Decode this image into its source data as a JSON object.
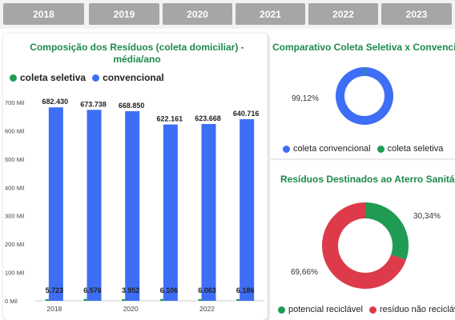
{
  "year_filters": [
    "2018",
    "2019",
    "2020",
    "2021",
    "2022",
    "2023"
  ],
  "colors": {
    "blue": "#3d6ef5",
    "green": "#1f9b54",
    "red": "#dd3b4a",
    "title_green": "#1e8a4c",
    "filter_bg": "#a6a6a6"
  },
  "left_panel": {
    "title_line1": "Composição dos Resíduos (coleta domiciliar) -",
    "title_line2": "média/ano",
    "legend": [
      {
        "label": "coleta seletiva",
        "color": "#1f9b54"
      },
      {
        "label": "convencional",
        "color": "#3d6ef5"
      }
    ]
  },
  "top_right": {
    "title": "Comparativo Coleta Seletiva x Convencional",
    "label_convencional": "99,12%",
    "legend": [
      {
        "label": "coleta convencional",
        "color": "#3d6ef5"
      },
      {
        "label": "coleta seletiva",
        "color": "#1f9b54"
      }
    ]
  },
  "bottom_right": {
    "title": "Resíduos Destinados ao Aterro Sanitário",
    "label_reciclavel": "30,34%",
    "label_nao_reciclavel": "69,66%",
    "legend": [
      {
        "label": "potencial reciclável",
        "color": "#1f9b54"
      },
      {
        "label": "resíduo não reciclável",
        "color": "#dd3b4a"
      }
    ]
  },
  "chart_data": [
    {
      "type": "bar",
      "title": "Composição dos Resíduos (coleta domiciliar) - média/ano",
      "categories": [
        "2018",
        "2019",
        "2020",
        "2021",
        "2022",
        "2023"
      ],
      "x_tick_labels": [
        "2018",
        "2020",
        "2022"
      ],
      "series": [
        {
          "name": "coleta seletiva",
          "color": "#1f9b54",
          "values": [
            5723,
            6576,
            3952,
            6106,
            6063,
            6186
          ],
          "labels": [
            "5.723",
            "6.576",
            "3.952",
            "6.106",
            "6.063",
            "6.186"
          ]
        },
        {
          "name": "convencional",
          "color": "#3d6ef5",
          "values": [
            682430,
            673738,
            668850,
            622161,
            623668,
            640716
          ],
          "labels": [
            "682.430",
            "673.738",
            "668.850",
            "622.161",
            "623.668",
            "640.716"
          ]
        }
      ],
      "ylim": [
        0,
        700000
      ],
      "yticks": [
        0,
        100000,
        200000,
        300000,
        400000,
        500000,
        600000,
        700000
      ],
      "ytick_labels": [
        "0 Mil",
        "100 Mil",
        "200 Mil",
        "300 Mil",
        "400 Mil",
        "500 Mil",
        "600 Mil",
        "700 Mil"
      ],
      "legend_position": "top-left",
      "grid": false
    },
    {
      "type": "pie",
      "subtype": "donut",
      "title": "Comparativo Coleta Seletiva x Convencional",
      "slices": [
        {
          "name": "coleta convencional",
          "value": 99.12,
          "color": "#3d6ef5"
        },
        {
          "name": "coleta seletiva",
          "value": 0.88,
          "color": "#1f9b54"
        }
      ],
      "legend_position": "bottom"
    },
    {
      "type": "pie",
      "subtype": "donut",
      "title": "Resíduos Destinados ao Aterro Sanitário",
      "slices": [
        {
          "name": "potencial reciclável",
          "value": 30.34,
          "color": "#1f9b54"
        },
        {
          "name": "resíduo não reciclável",
          "value": 69.66,
          "color": "#dd3b4a"
        }
      ],
      "legend_position": "bottom"
    }
  ]
}
